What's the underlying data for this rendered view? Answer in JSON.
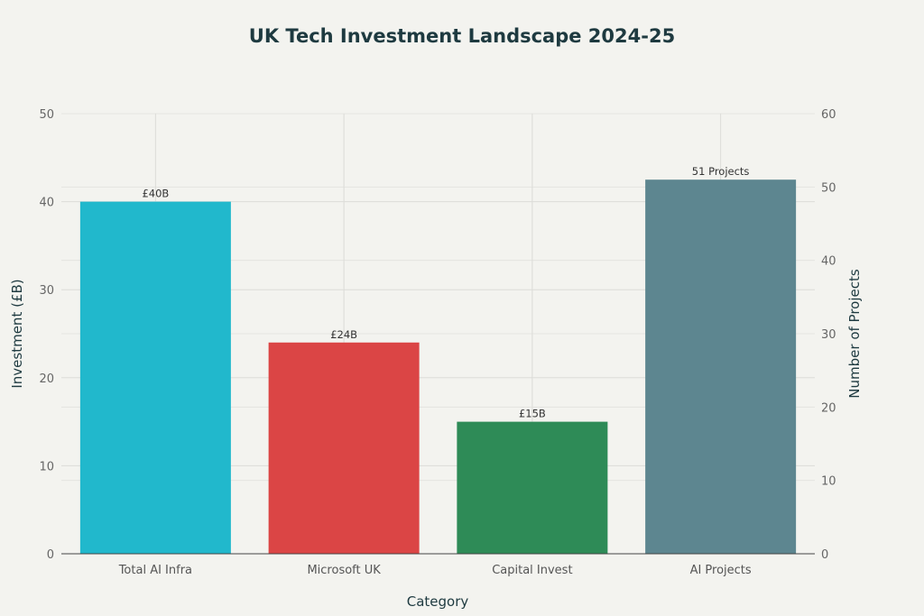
{
  "chart_data": {
    "type": "bar",
    "title": "UK Tech Investment Landscape 2024-25",
    "xlabel": "Category",
    "ylabel": "Investment (£B)",
    "y2label": "Number of Projects",
    "categories": [
      "Total AI Infra",
      "Microsoft UK",
      "Capital Invest",
      "AI Projects"
    ],
    "series": [
      {
        "name": "Investment (£B)",
        "axis": "left",
        "values": [
          40,
          24,
          15,
          null
        ],
        "labels": [
          "£40B",
          "£24B",
          "£15B",
          null
        ]
      },
      {
        "name": "Number of Projects",
        "axis": "right",
        "values": [
          null,
          null,
          null,
          51
        ],
        "labels": [
          null,
          null,
          null,
          "51 Projects"
        ]
      }
    ],
    "colors": [
      "#21b8cc",
      "#db4545",
      "#2e8b57",
      "#5d8690"
    ],
    "ylim": [
      0,
      50
    ],
    "y2lim": [
      0,
      60
    ],
    "yticks": [
      0,
      10,
      20,
      30,
      40,
      50
    ],
    "y2ticks": [
      0,
      10,
      20,
      30,
      40,
      50,
      60
    ],
    "grid": true
  }
}
